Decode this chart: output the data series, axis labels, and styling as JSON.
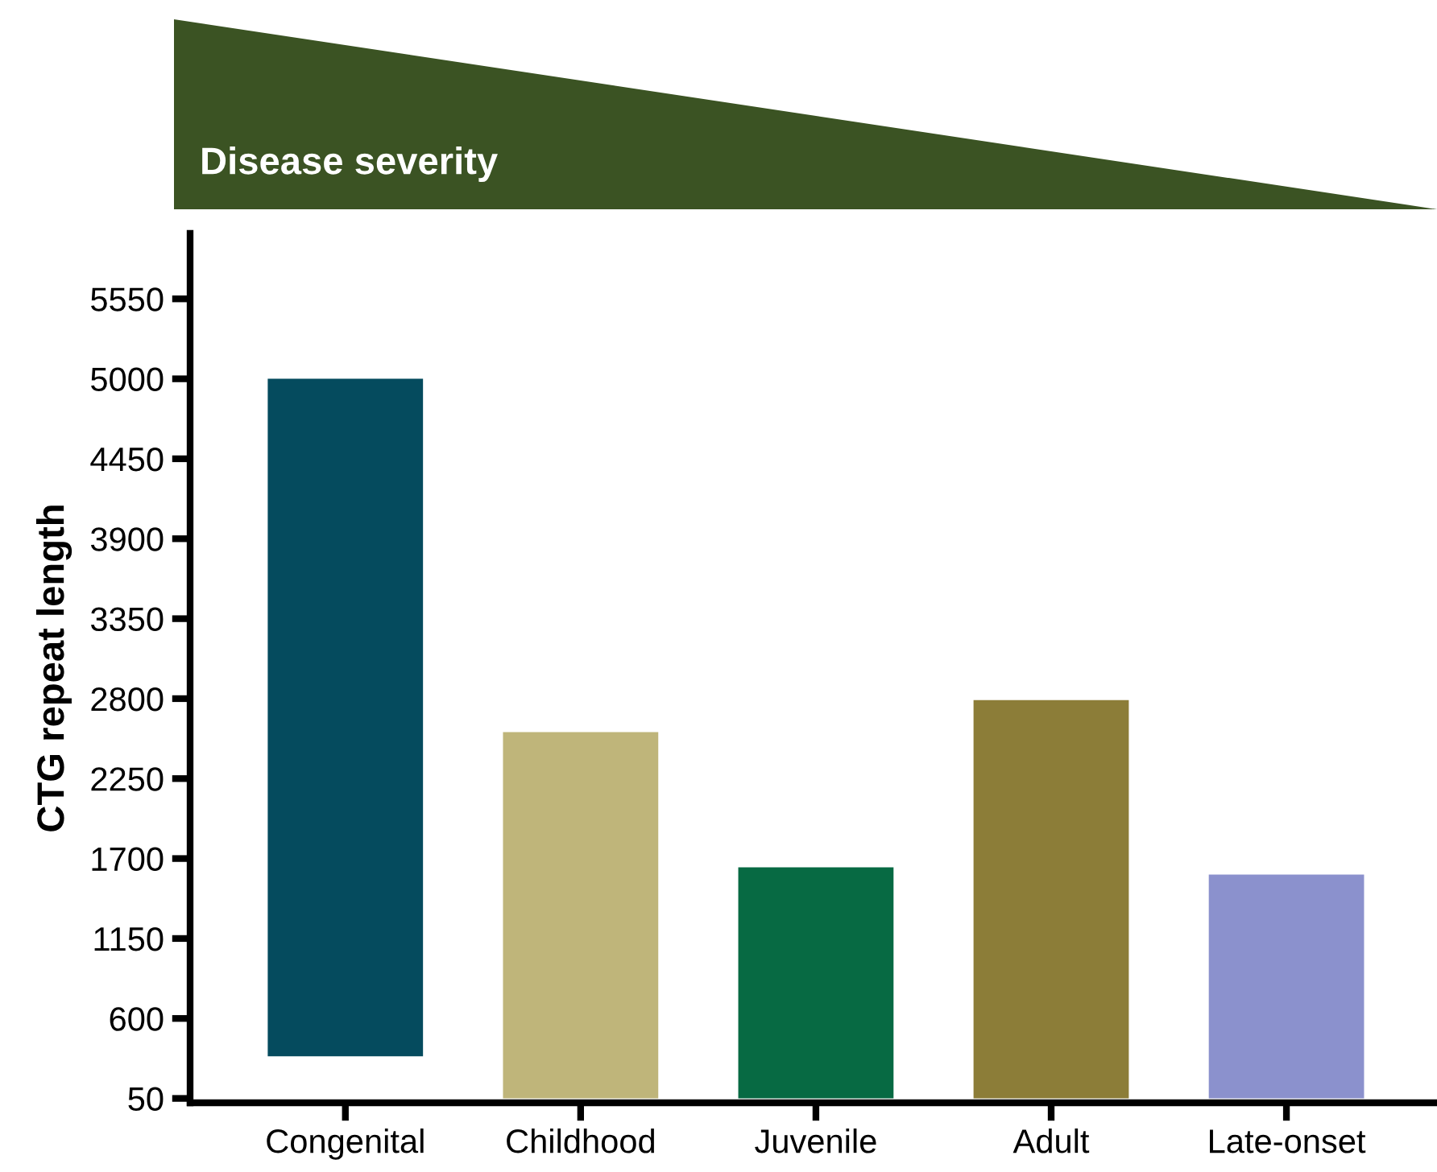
{
  "chart_data": {
    "type": "bar",
    "ylabel": "CTG repeat length",
    "categories": [
      "Congenital",
      "Childhood",
      "Juvenile",
      "Adult",
      "Late-onset"
    ],
    "values": [
      4660,
      2520,
      1590,
      2740,
      1540
    ],
    "base": [
      340,
      50,
      50,
      50,
      50
    ],
    "colors": [
      "#054b5e",
      "#bfb57a",
      "#076a43",
      "#8c7d38",
      "#8b91cd"
    ],
    "ylim": [
      20,
      6000
    ],
    "yticks": [
      50,
      600,
      1150,
      1700,
      2250,
      2800,
      3350,
      3900,
      4450,
      5000,
      5550
    ],
    "grid": false,
    "legend": false,
    "annotations": [
      "Disease severity"
    ]
  }
}
